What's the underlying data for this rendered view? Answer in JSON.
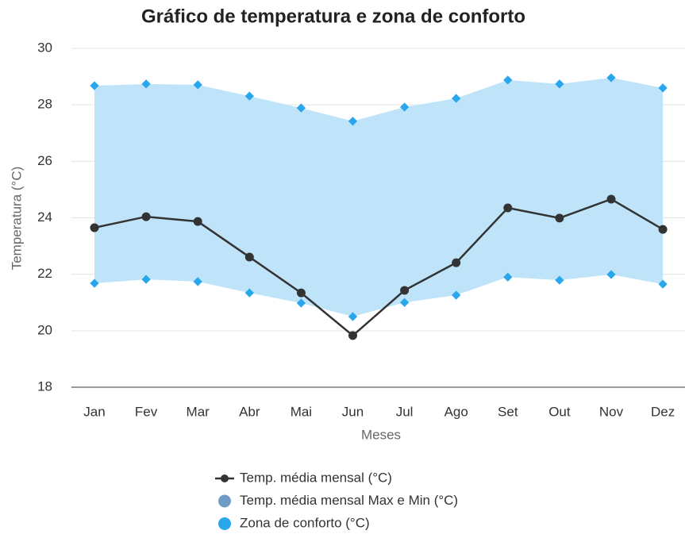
{
  "chart_data": {
    "type": "line",
    "title": "Gráfico de temperatura e zona de conforto",
    "x_label": "Meses",
    "y_label": "Temperatura (°C)",
    "categories": [
      "Jan",
      "Fev",
      "Mar",
      "Abr",
      "Mai",
      "Jun",
      "Jul",
      "Ago",
      "Set",
      "Out",
      "Nov",
      "Dez"
    ],
    "series": [
      {
        "name": "Temp. média mensal (°C)",
        "color": "#333333",
        "values": [
          23.65,
          24.04,
          23.87,
          22.61,
          21.34,
          19.83,
          21.43,
          22.41,
          24.35,
          23.99,
          24.66,
          23.59
        ]
      },
      {
        "name": "Temp. média mensal Max e Min (°C)",
        "color": "#6e9cc4"
      },
      {
        "name": "Zona de conforto (°C)",
        "color": "#2aa7ec",
        "area_color": "#bfe4f9",
        "high": [
          28.68,
          28.74,
          28.71,
          28.31,
          27.89,
          27.42,
          27.92,
          28.23,
          28.88,
          28.74,
          28.96,
          28.6
        ],
        "low": [
          21.68,
          21.82,
          21.74,
          21.34,
          20.98,
          20.5,
          21.0,
          21.26,
          21.9,
          21.79,
          21.99,
          21.65
        ]
      }
    ],
    "ylim": [
      18,
      30
    ],
    "yticks": [
      18,
      20,
      22,
      24,
      26,
      28,
      30
    ],
    "grid": true
  }
}
